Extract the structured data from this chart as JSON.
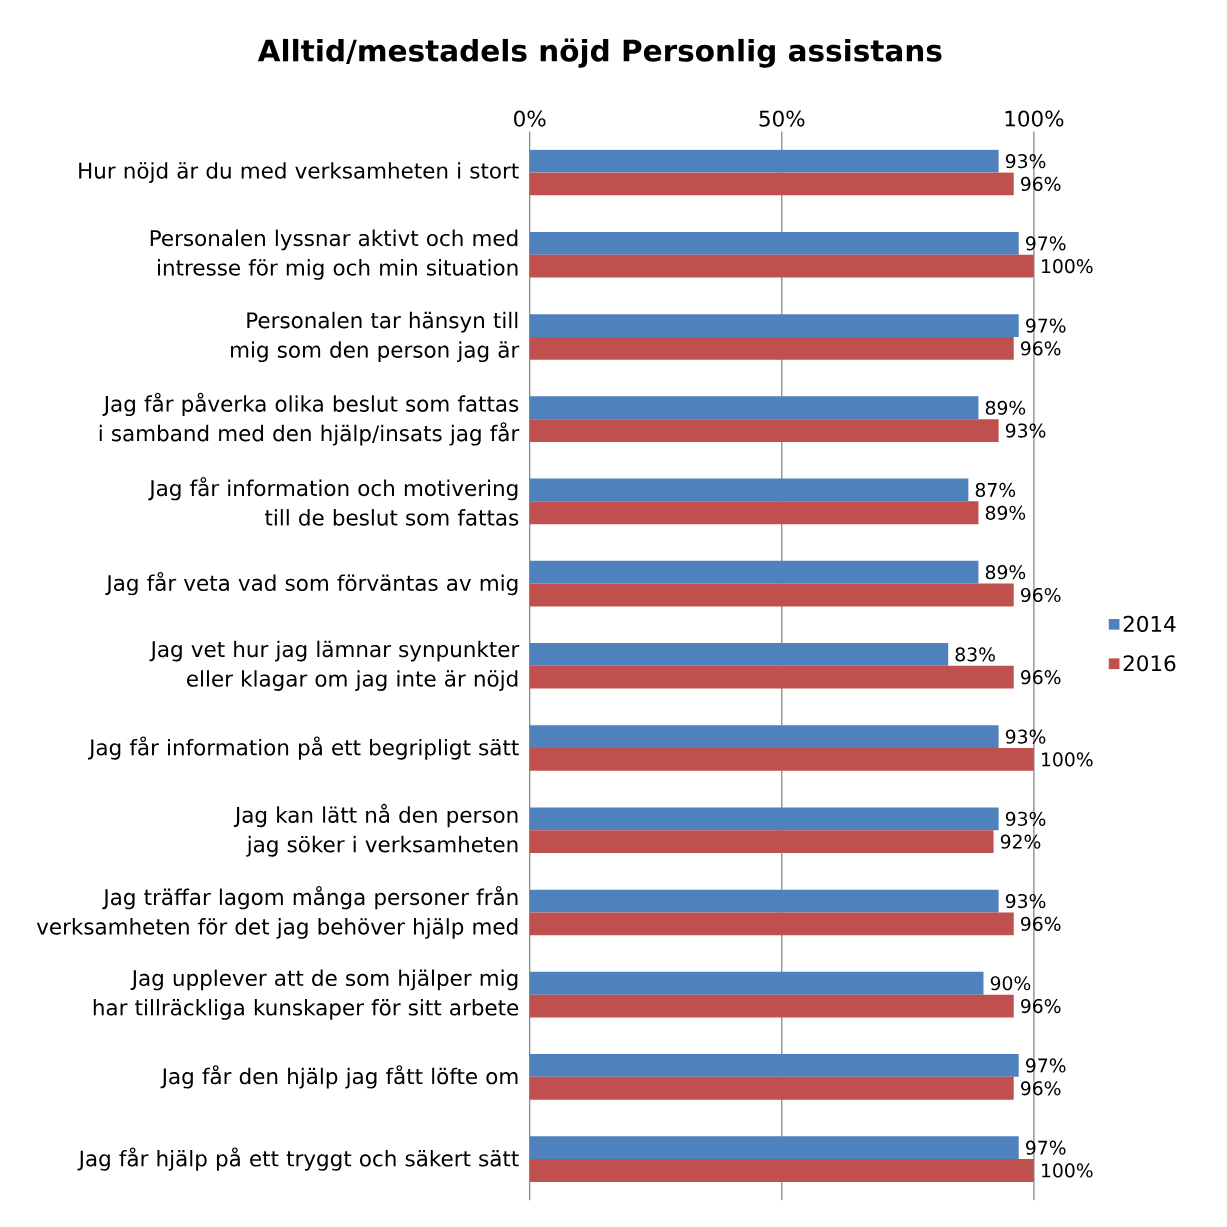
{
  "chart_data": {
    "type": "bar",
    "orientation": "horizontal",
    "title": "Alltid/mestadels nöjd Personlig assistans",
    "categories": [
      "Hur nöjd är du med verksamheten i stort",
      "Personalen lyssnar aktivt och med intresse för mig och min situation",
      "Personalen tar hänsyn till mig som den person jag är",
      "Jag får påverka olika beslut som fattas i samband med den hjälp/insats jag får",
      "Jag får information och motivering till de beslut som fattas",
      "Jag får veta vad som förväntas av mig",
      "Jag vet hur jag lämnar synpunkter eller klagar om jag inte är nöjd",
      "Jag får information på ett begripligt sätt",
      "Jag kan lätt nå den person jag söker i verksamheten",
      "Jag träffar lagom många personer från verksamheten för det jag behöver hjälp med",
      "Jag upplever att de som hjälper mig har tillräckliga kunskaper för sitt arbete",
      "Jag får den hjälp jag fått löfte om",
      "Jag får hjälp på ett tryggt och säkert sätt"
    ],
    "series": [
      {
        "name": "2014",
        "color": "#4f81bd",
        "values": [
          93,
          97,
          97,
          89,
          87,
          89,
          83,
          93,
          93,
          93,
          90,
          97,
          97
        ],
        "value_labels": [
          "93%",
          "97%",
          "97%",
          "89%",
          "87%",
          "89%",
          "83%",
          "93%",
          "93%",
          "93%",
          "90%",
          "97%",
          "97%"
        ]
      },
      {
        "name": "2016",
        "color": "#c0504d",
        "values": [
          96,
          100,
          96,
          93,
          89,
          96,
          96,
          100,
          92,
          96,
          96,
          96,
          100
        ],
        "value_labels": [
          "96%",
          "100%",
          "96%",
          "93%",
          "89%",
          "96%",
          "96%",
          "100%",
          "92%",
          "96%",
          "96%",
          "96%",
          "100%"
        ]
      }
    ],
    "xlim": [
      0,
      100
    ],
    "xticks": [
      {
        "value": 0,
        "label": "0%"
      },
      {
        "value": 50,
        "label": "50%"
      },
      {
        "value": 100,
        "label": "100%"
      }
    ],
    "grid": "x",
    "legend": "right"
  }
}
